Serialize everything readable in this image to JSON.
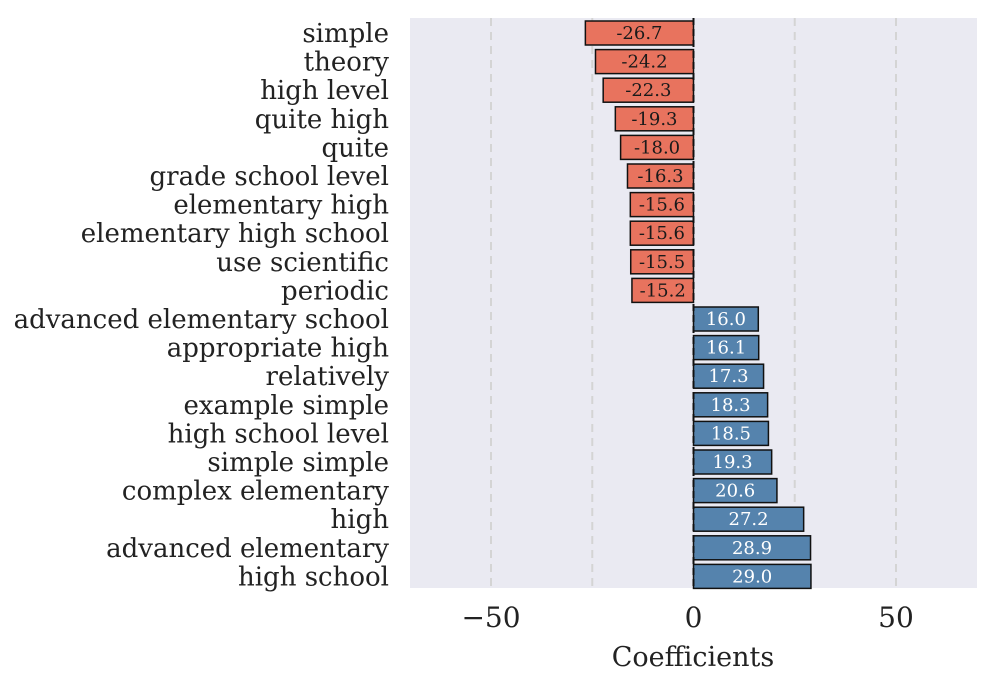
{
  "chart_data": {
    "type": "bar",
    "orientation": "horizontal",
    "title": "",
    "xlabel": "Coefficients",
    "ylabel": "",
    "xlim": [
      -70,
      70
    ],
    "x_ticks": [
      -50,
      0,
      50
    ],
    "x_tick_labels": [
      "−50",
      "0",
      "50"
    ],
    "grid": true,
    "categories": [
      "simple",
      "theory",
      "high level",
      "quite high",
      "quite",
      "grade school level",
      "elementary high",
      "elementary high school",
      "use scientific",
      "periodic",
      "advanced elementary school",
      "appropriate high",
      "relatively",
      "example simple",
      "high school level",
      "simple simple",
      "complex elementary",
      "high",
      "advanced elementary",
      "high school"
    ],
    "values": [
      -26.7,
      -24.2,
      -22.3,
      -19.3,
      -18.0,
      -16.3,
      -15.6,
      -15.6,
      -15.5,
      -15.2,
      16.0,
      16.1,
      17.3,
      18.3,
      18.5,
      19.3,
      20.6,
      27.2,
      28.9,
      29.0
    ],
    "value_labels": [
      "-26.7",
      "-24.2",
      "-22.3",
      "-19.3",
      "-18.0",
      "-16.3",
      "-15.6",
      "-15.6",
      "-15.5",
      "-15.2",
      "16.0",
      "16.1",
      "17.3",
      "18.3",
      "18.5",
      "19.3",
      "20.6",
      "27.2",
      "28.9",
      "29.0"
    ],
    "colors": {
      "negative": "#E8735E",
      "positive": "#5583AD",
      "background": "#EAEAF2",
      "grid": "#D4D4D4",
      "edge": "#111111",
      "negative_text": "#1A1A1A",
      "positive_text": "#FFFFFF"
    }
  }
}
